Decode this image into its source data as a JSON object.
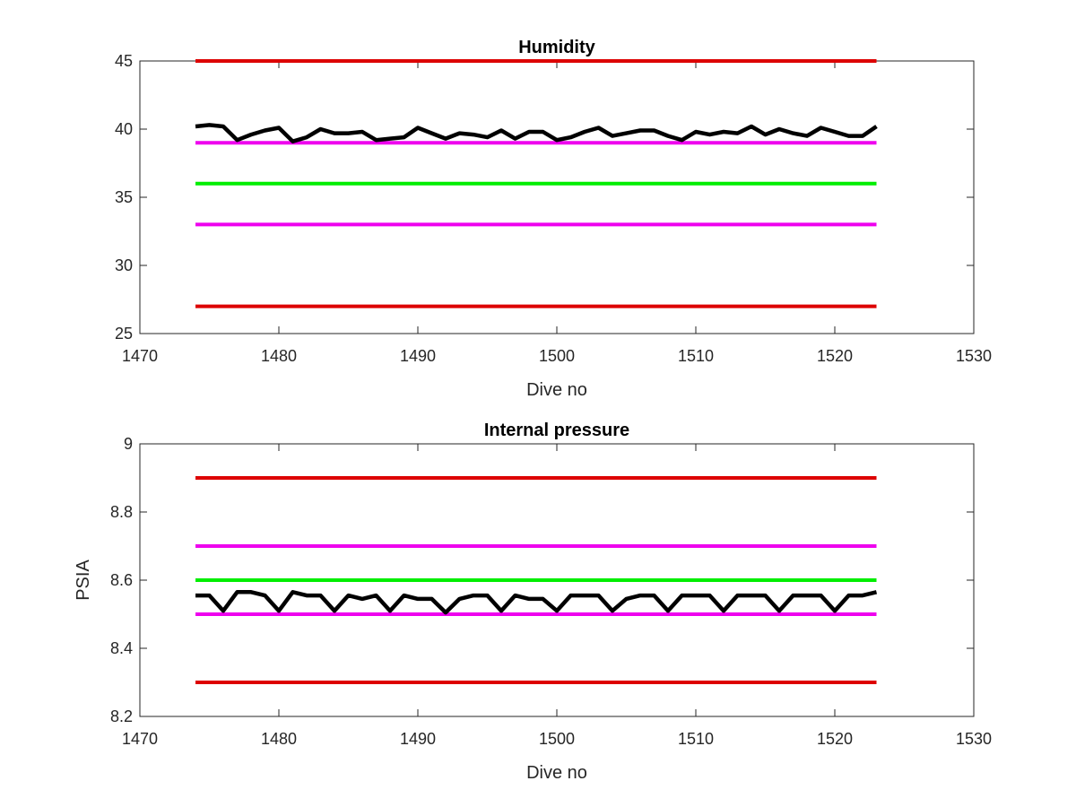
{
  "chart_data": [
    {
      "type": "line",
      "title": "Humidity",
      "xlabel": "Dive no",
      "ylabel": "",
      "xlim": [
        1470,
        1530
      ],
      "ylim": [
        25,
        45
      ],
      "xticks": [
        1470,
        1480,
        1490,
        1500,
        1510,
        1520,
        1530
      ],
      "yticks": [
        25,
        30,
        35,
        40,
        45
      ],
      "xtick_labels": [
        "1470",
        "1480",
        "1490",
        "1500",
        "1510",
        "1520",
        "1530"
      ],
      "ytick_labels": [
        "25",
        "30",
        "35",
        "40",
        "45"
      ],
      "grid": false,
      "series": [
        {
          "role": "limit",
          "color": "#dd0000",
          "x": [
            1474,
            1523
          ],
          "y": [
            45,
            45
          ]
        },
        {
          "role": "limit",
          "color": "#ee00ee",
          "x": [
            1474,
            1523
          ],
          "y": [
            39,
            39
          ]
        },
        {
          "role": "limit",
          "color": "#00ee00",
          "x": [
            1474,
            1523
          ],
          "y": [
            36,
            36
          ]
        },
        {
          "role": "limit",
          "color": "#ee00ee",
          "x": [
            1474,
            1523
          ],
          "y": [
            33,
            33
          ]
        },
        {
          "role": "limit",
          "color": "#dd0000",
          "x": [
            1474,
            1523
          ],
          "y": [
            27,
            27
          ]
        },
        {
          "role": "measurement",
          "color": "#000000",
          "x": [
            1474,
            1475,
            1476,
            1477,
            1478,
            1479,
            1480,
            1481,
            1482,
            1483,
            1484,
            1485,
            1486,
            1487,
            1488,
            1489,
            1490,
            1491,
            1492,
            1493,
            1494,
            1495,
            1496,
            1497,
            1498,
            1499,
            1500,
            1501,
            1502,
            1503,
            1504,
            1505,
            1506,
            1507,
            1508,
            1509,
            1510,
            1511,
            1512,
            1513,
            1514,
            1515,
            1516,
            1517,
            1518,
            1519,
            1520,
            1521,
            1522,
            1523
          ],
          "y": [
            40.2,
            40.3,
            40.2,
            39.2,
            39.6,
            39.9,
            40.1,
            39.1,
            39.4,
            40.0,
            39.7,
            39.7,
            39.8,
            39.2,
            39.3,
            39.4,
            40.1,
            39.7,
            39.3,
            39.7,
            39.6,
            39.4,
            39.9,
            39.3,
            39.8,
            39.8,
            39.2,
            39.4,
            39.8,
            40.1,
            39.5,
            39.7,
            39.9,
            39.9,
            39.5,
            39.2,
            39.8,
            39.6,
            39.8,
            39.7,
            40.2,
            39.6,
            40.0,
            39.7,
            39.5,
            40.1,
            39.8,
            39.5,
            39.5,
            40.2
          ]
        }
      ]
    },
    {
      "type": "line",
      "title": "Internal pressure",
      "xlabel": "Dive no",
      "ylabel": "PSIA",
      "xlim": [
        1470,
        1530
      ],
      "ylim": [
        8.2,
        9.0
      ],
      "xticks": [
        1470,
        1480,
        1490,
        1500,
        1510,
        1520,
        1530
      ],
      "yticks": [
        8.2,
        8.4,
        8.6,
        8.8,
        9.0
      ],
      "xtick_labels": [
        "1470",
        "1480",
        "1490",
        "1500",
        "1510",
        "1520",
        "1530"
      ],
      "ytick_labels": [
        "8.2",
        "8.4",
        "8.6",
        "8.8",
        "9"
      ],
      "grid": false,
      "series": [
        {
          "role": "limit",
          "color": "#dd0000",
          "x": [
            1474,
            1523
          ],
          "y": [
            8.9,
            8.9
          ]
        },
        {
          "role": "limit",
          "color": "#ee00ee",
          "x": [
            1474,
            1523
          ],
          "y": [
            8.7,
            8.7
          ]
        },
        {
          "role": "limit",
          "color": "#00ee00",
          "x": [
            1474,
            1523
          ],
          "y": [
            8.6,
            8.6
          ]
        },
        {
          "role": "limit",
          "color": "#ee00ee",
          "x": [
            1474,
            1523
          ],
          "y": [
            8.5,
            8.5
          ]
        },
        {
          "role": "limit",
          "color": "#dd0000",
          "x": [
            1474,
            1523
          ],
          "y": [
            8.3,
            8.3
          ]
        },
        {
          "role": "measurement",
          "color": "#000000",
          "x": [
            1474,
            1475,
            1476,
            1477,
            1478,
            1479,
            1480,
            1481,
            1482,
            1483,
            1484,
            1485,
            1486,
            1487,
            1488,
            1489,
            1490,
            1491,
            1492,
            1493,
            1494,
            1495,
            1496,
            1497,
            1498,
            1499,
            1500,
            1501,
            1502,
            1503,
            1504,
            1505,
            1506,
            1507,
            1508,
            1509,
            1510,
            1511,
            1512,
            1513,
            1514,
            1515,
            1516,
            1517,
            1518,
            1519,
            1520,
            1521,
            1522,
            1523
          ],
          "y": [
            8.555,
            8.555,
            8.51,
            8.565,
            8.565,
            8.555,
            8.51,
            8.565,
            8.555,
            8.555,
            8.51,
            8.555,
            8.545,
            8.555,
            8.51,
            8.555,
            8.545,
            8.545,
            8.505,
            8.545,
            8.555,
            8.555,
            8.51,
            8.555,
            8.545,
            8.545,
            8.51,
            8.555,
            8.555,
            8.555,
            8.51,
            8.545,
            8.555,
            8.555,
            8.51,
            8.555,
            8.555,
            8.555,
            8.51,
            8.555,
            8.555,
            8.555,
            8.51,
            8.555,
            8.555,
            8.555,
            8.51,
            8.555,
            8.555,
            8.565
          ]
        }
      ]
    }
  ]
}
